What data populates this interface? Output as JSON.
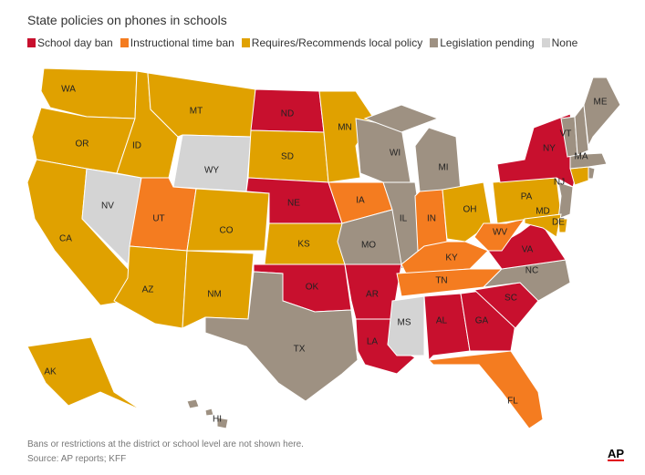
{
  "title": "State policies on phones in schools",
  "legend": [
    {
      "key": "school_day_ban",
      "label": "School day ban",
      "color": "#c8102e"
    },
    {
      "key": "instructional_time_ban",
      "label": "Instructional time ban",
      "color": "#f47c20"
    },
    {
      "key": "local_policy",
      "label": "Requires/Recommends local policy",
      "color": "#e0a100"
    },
    {
      "key": "pending",
      "label": "Legislation pending",
      "color": "#9e9182"
    },
    {
      "key": "none",
      "label": "None",
      "color": "#d4d4d4"
    }
  ],
  "states": [
    {
      "abbr": "WA",
      "policy": "local_policy"
    },
    {
      "abbr": "OR",
      "policy": "local_policy"
    },
    {
      "abbr": "CA",
      "policy": "local_policy"
    },
    {
      "abbr": "NV",
      "policy": "none"
    },
    {
      "abbr": "ID",
      "policy": "local_policy"
    },
    {
      "abbr": "MT",
      "policy": "local_policy"
    },
    {
      "abbr": "WY",
      "policy": "none"
    },
    {
      "abbr": "UT",
      "policy": "instructional_time_ban"
    },
    {
      "abbr": "AZ",
      "policy": "local_policy"
    },
    {
      "abbr": "CO",
      "policy": "local_policy"
    },
    {
      "abbr": "NM",
      "policy": "local_policy"
    },
    {
      "abbr": "ND",
      "policy": "school_day_ban"
    },
    {
      "abbr": "SD",
      "policy": "local_policy"
    },
    {
      "abbr": "NE",
      "policy": "school_day_ban"
    },
    {
      "abbr": "KS",
      "policy": "local_policy"
    },
    {
      "abbr": "OK",
      "policy": "school_day_ban"
    },
    {
      "abbr": "TX",
      "policy": "pending"
    },
    {
      "abbr": "MN",
      "policy": "local_policy"
    },
    {
      "abbr": "IA",
      "policy": "instructional_time_ban"
    },
    {
      "abbr": "MO",
      "policy": "pending"
    },
    {
      "abbr": "AR",
      "policy": "school_day_ban"
    },
    {
      "abbr": "LA",
      "policy": "school_day_ban"
    },
    {
      "abbr": "WI",
      "policy": "pending"
    },
    {
      "abbr": "IL",
      "policy": "pending"
    },
    {
      "abbr": "MI",
      "policy": "pending"
    },
    {
      "abbr": "IN",
      "policy": "instructional_time_ban"
    },
    {
      "abbr": "OH",
      "policy": "local_policy"
    },
    {
      "abbr": "KY",
      "policy": "instructional_time_ban"
    },
    {
      "abbr": "TN",
      "policy": "instructional_time_ban"
    },
    {
      "abbr": "MS",
      "policy": "none"
    },
    {
      "abbr": "AL",
      "policy": "school_day_ban"
    },
    {
      "abbr": "GA",
      "policy": "school_day_ban"
    },
    {
      "abbr": "FL",
      "policy": "instructional_time_ban"
    },
    {
      "abbr": "SC",
      "policy": "school_day_ban"
    },
    {
      "abbr": "NC",
      "policy": "pending"
    },
    {
      "abbr": "VA",
      "policy": "school_day_ban"
    },
    {
      "abbr": "WV",
      "policy": "instructional_time_ban"
    },
    {
      "abbr": "PA",
      "policy": "local_policy"
    },
    {
      "abbr": "NY",
      "policy": "school_day_ban"
    },
    {
      "abbr": "NJ",
      "policy": "pending"
    },
    {
      "abbr": "MD",
      "policy": "local_policy"
    },
    {
      "abbr": "DE",
      "policy": "local_policy"
    },
    {
      "abbr": "CT",
      "policy": "local_policy"
    },
    {
      "abbr": "RI",
      "policy": "pending"
    },
    {
      "abbr": "MA",
      "policy": "pending"
    },
    {
      "abbr": "VT",
      "policy": "pending"
    },
    {
      "abbr": "NH",
      "policy": "pending"
    },
    {
      "abbr": "ME",
      "policy": "pending"
    },
    {
      "abbr": "AK",
      "policy": "local_policy"
    },
    {
      "abbr": "HI",
      "policy": "pending"
    }
  ],
  "footer": {
    "note": "Bans or restrictions at the district or school level are not shown here.",
    "source": "Source: AP reports; KFF",
    "logo": "AP"
  }
}
